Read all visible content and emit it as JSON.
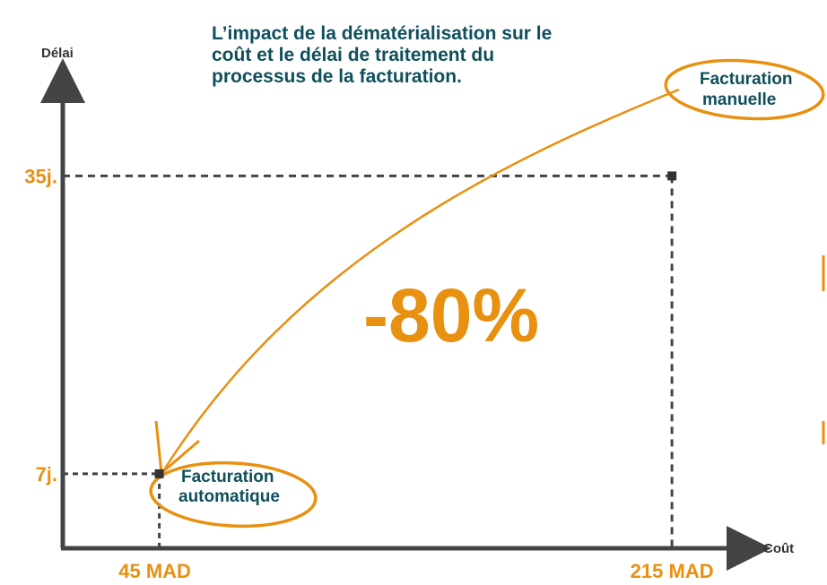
{
  "title_lines": [
    "L’impact de la dématérialisation sur le",
    "coût et le délai de traitement du",
    "processus de la facturation."
  ],
  "colors": {
    "accent": "#e8900f",
    "text": "#0f4f5c",
    "axis": "#444444"
  },
  "chart_data": {
    "type": "scatter",
    "xlabel": "Coût",
    "ylabel": "Délai",
    "x_ticks": [
      "45 MAD",
      "215 MAD"
    ],
    "y_ticks": [
      "7j.",
      "35j."
    ],
    "points": [
      {
        "label": "Facturation manuelle",
        "label_lines": [
          "Facturation",
          "manuelle"
        ],
        "x": 215,
        "y": 35
      },
      {
        "label": "Facturation automatique",
        "label_lines": [
          "Facturation",
          "automatique"
        ],
        "x": 45,
        "y": 7
      }
    ],
    "annotation": "-80%",
    "xlim": [
      13,
      245
    ],
    "ylim": [
      0,
      44.8
    ],
    "grid": false,
    "legend": "none"
  }
}
